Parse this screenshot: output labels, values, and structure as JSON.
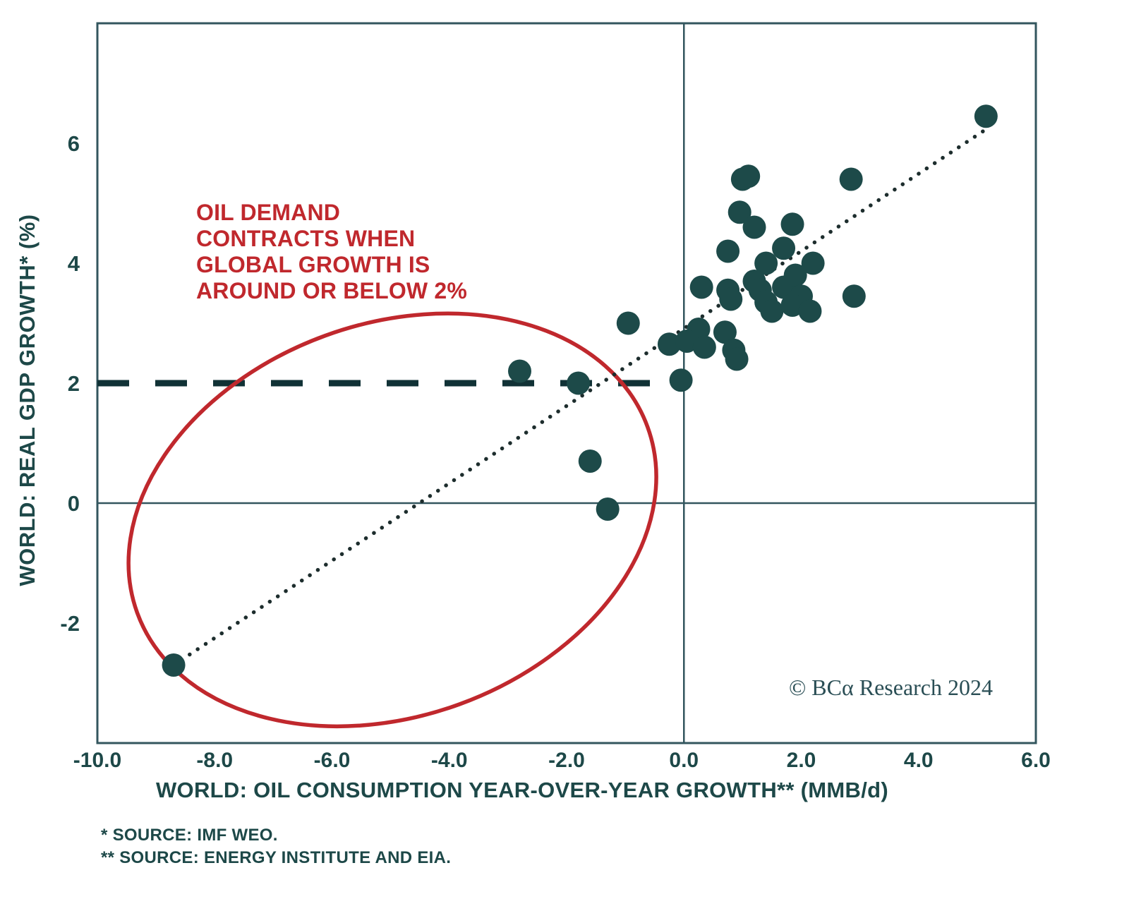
{
  "colors": {
    "background": "#ffffff",
    "ink": "#1d4848",
    "axis_line": "#33565e",
    "point_fill": "#1d4a49",
    "dashed_line": "#113236",
    "trend_dots": "#1d2d2d",
    "accent_red": "#c0282d"
  },
  "annotation": {
    "text": "OIL DEMAND\nCONTRACTS WHEN\nGLOBAL GROWTH IS\nAROUND OR BELOW 2%"
  },
  "watermark": {
    "text": "© BCα Research 2024"
  },
  "footnotes": {
    "line1": "*  SOURCE: IMF WEO.",
    "line2": "** SOURCE: ENERGY INSTITUTE AND EIA."
  },
  "chart_data": {
    "type": "scatter",
    "title": "",
    "xlabel": "WORLD: OIL CONSUMPTION YEAR-OVER-YEAR GROWTH** (MMB/d)",
    "ylabel": "WORLD: REAL GDP GROWTH* (%)",
    "xlim": [
      -10,
      6
    ],
    "ylim": [
      -4,
      8
    ],
    "grid": false,
    "legend": false,
    "x_ticks": {
      "values": [
        -10,
        -8,
        -6,
        -4,
        -2,
        0,
        2,
        4,
        6
      ],
      "labels": [
        "-10.0",
        "-8.0",
        "-6.0",
        "-4.0",
        "-2.0",
        "0.0",
        "2.0",
        "4.0",
        "6.0"
      ]
    },
    "y_ticks": {
      "values": [
        6,
        4,
        2,
        0,
        -2
      ],
      "labels": [
        "6",
        "4",
        "2",
        "0",
        "-2"
      ]
    },
    "points": [
      [
        1.0,
        5.4
      ],
      [
        1.1,
        5.45
      ],
      [
        0.95,
        4.85
      ],
      [
        1.2,
        4.6
      ],
      [
        1.85,
        4.65
      ],
      [
        0.75,
        4.2
      ],
      [
        1.7,
        4.25
      ],
      [
        2.2,
        4.0
      ],
      [
        0.3,
        3.6
      ],
      [
        0.75,
        3.55
      ],
      [
        0.8,
        3.4
      ],
      [
        1.4,
        4.0
      ],
      [
        1.2,
        3.7
      ],
      [
        1.3,
        3.55
      ],
      [
        1.4,
        3.35
      ],
      [
        1.5,
        3.2
      ],
      [
        1.7,
        3.6
      ],
      [
        1.9,
        3.8
      ],
      [
        2.0,
        3.45
      ],
      [
        1.85,
        3.3
      ],
      [
        2.15,
        3.2
      ],
      [
        2.9,
        3.45
      ],
      [
        0.25,
        2.9
      ],
      [
        0.7,
        2.85
      ],
      [
        -0.25,
        2.65
      ],
      [
        0.05,
        2.7
      ],
      [
        0.35,
        2.6
      ],
      [
        0.85,
        2.55
      ],
      [
        0.9,
        2.4
      ],
      [
        -0.05,
        2.05
      ],
      [
        5.15,
        6.45
      ],
      [
        2.85,
        5.4
      ],
      [
        -2.8,
        2.2
      ],
      [
        -1.8,
        2.0
      ],
      [
        -0.95,
        3.0
      ],
      [
        -1.6,
        0.7
      ],
      [
        -1.3,
        -0.1
      ],
      [
        -8.7,
        -2.7
      ]
    ],
    "point_radius_px": 16.5,
    "reference_lines": {
      "dashed_threshold": {
        "y": 2,
        "x_start": -10,
        "x_end": 0.1
      },
      "vertical_zero_x": 0,
      "horizontal_zero_y": 0
    },
    "trend_line": {
      "x1": -8.7,
      "y1": -2.7,
      "x2": 5.1,
      "y2": 6.2,
      "style": "dotted"
    },
    "highlight_ellipse": {
      "cx": -4.97,
      "cy": -0.28,
      "rx": 4.63,
      "ry": 3.27,
      "rotation_deg": -20
    }
  }
}
